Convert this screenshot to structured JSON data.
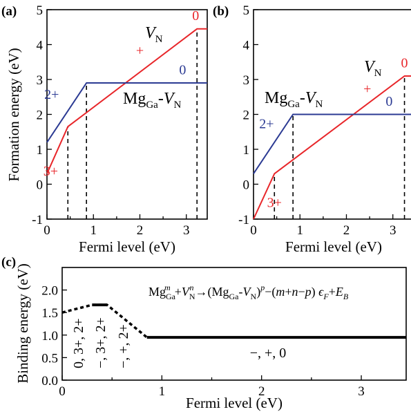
{
  "colors": {
    "vn": "#e8262a",
    "complex": "#2b3a93",
    "black": "#000000"
  },
  "chart_data": [
    {
      "panel": "(a)",
      "type": "line",
      "xlabel": "Fermi level (eV)",
      "ylabel": "Formation energy (eV)",
      "xlim": [
        0,
        3.45
      ],
      "ylim": [
        -1,
        5
      ],
      "xticks": [
        0,
        1,
        2,
        3
      ],
      "yticks": [
        -1,
        0,
        1,
        2,
        3,
        4,
        5
      ],
      "series": [
        {
          "name": "V_N",
          "color": "#e8262a",
          "x": [
            0,
            0.45,
            3.23,
            3.45
          ],
          "y": [
            0.3,
            1.65,
            4.45,
            4.45
          ]
        },
        {
          "name": "Mg_Ga-V_N",
          "color": "#2b3a93",
          "x": [
            0,
            0.85,
            3.45
          ],
          "y": [
            1.2,
            2.9,
            2.9
          ]
        }
      ],
      "transitions": [
        0.45,
        0.85,
        3.23
      ],
      "labels": [
        {
          "text": "3+",
          "x": 0.08,
          "y": 0.25,
          "color": "#e8262a"
        },
        {
          "text": "2+",
          "x": 0.1,
          "y": 2.45,
          "color": "#2b3a93"
        },
        {
          "text": "+",
          "x": 2.0,
          "y": 3.7,
          "color": "#e8262a"
        },
        {
          "text": "0",
          "x": 2.92,
          "y": 3.15,
          "color": "#2b3a93"
        },
        {
          "text": "0",
          "x": 3.2,
          "y": 4.7,
          "color": "#e8262a"
        }
      ]
    },
    {
      "panel": "(b)",
      "type": "line",
      "xlabel": "Fermi level (eV)",
      "ylabel": "",
      "xlim": [
        0,
        3.45
      ],
      "ylim": [
        -1,
        5
      ],
      "xticks": [
        0,
        1,
        2,
        3
      ],
      "yticks": [
        -1,
        0,
        1,
        2,
        3,
        4,
        5
      ],
      "series": [
        {
          "name": "V_N",
          "color": "#e8262a",
          "x": [
            0,
            0.45,
            3.25,
            3.45
          ],
          "y": [
            -1,
            0.3,
            3.1,
            3.1
          ]
        },
        {
          "name": "Mg_Ga-V_N",
          "color": "#2b3a93",
          "x": [
            0,
            0.85,
            3.45
          ],
          "y": [
            0.3,
            2.0,
            2.0
          ]
        }
      ],
      "transitions": [
        0.45,
        0.85,
        3.25
      ],
      "labels": [
        {
          "text": "3+",
          "x": 0.45,
          "y": -0.65,
          "color": "#e8262a"
        },
        {
          "text": "2+",
          "x": 0.28,
          "y": 1.6,
          "color": "#2b3a93"
        },
        {
          "text": "+",
          "x": 2.45,
          "y": 2.6,
          "color": "#e8262a"
        },
        {
          "text": "0",
          "x": 2.92,
          "y": 2.25,
          "color": "#2b3a93"
        },
        {
          "text": "0",
          "x": 3.25,
          "y": 3.35,
          "color": "#e8262a"
        }
      ]
    },
    {
      "panel": "(c)",
      "type": "line",
      "xlabel": "Fermi level (eV)",
      "ylabel": "Binding energy (eV)",
      "xlim": [
        0,
        3.45
      ],
      "ylim": [
        0,
        2.5
      ],
      "xticks": [
        0,
        1,
        2,
        3
      ],
      "yticks": [
        0.0,
        0.5,
        1.0,
        1.5,
        2.0
      ],
      "ytick_labels": [
        "0.0",
        "0.5",
        "1.0",
        "1.5",
        "2.0"
      ],
      "series": [
        {
          "name": "dotted",
          "x": [
            0,
            0.3,
            0.45,
            0.85
          ],
          "y": [
            1.5,
            1.67,
            1.67,
            0.95
          ],
          "style": "dotted"
        },
        {
          "name": "solid-top",
          "x": [
            0.3,
            0.45
          ],
          "y": [
            1.67,
            1.67
          ],
          "style": "solid"
        },
        {
          "name": "solid-flat",
          "x": [
            0.85,
            3.45
          ],
          "y": [
            0.95,
            0.95
          ],
          "style": "solid"
        }
      ],
      "rotated_labels": [
        "0, 3+, 2+",
        "−, 3+, 2+",
        "−, +, 2+"
      ],
      "flat_label": "−, +, 0"
    }
  ]
}
